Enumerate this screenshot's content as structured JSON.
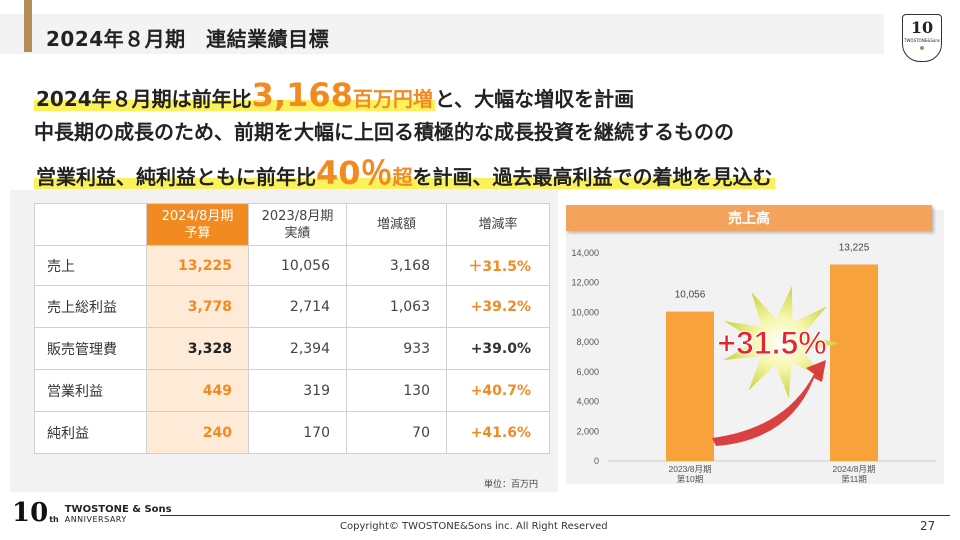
{
  "header": {
    "title": "2024年８月期　連結業績目標"
  },
  "headline": {
    "line1_a": "2024年８月期は前年比",
    "line1_big": "3,168",
    "line1_b": "百万円増",
    "line1_c": "と、大幅な増収を計画",
    "line2": "中長期の成長のため、前期を大幅に上回る積極的な成長投資を継続するものの",
    "line3_a": "営業利益、純利益ともに前年比",
    "line3_big": "40％",
    "line3_b": "超",
    "line3_c": "を計画、過去最高利益での着地を見込む"
  },
  "table": {
    "headers": [
      "2024/8月期\n予算",
      "2023/8月期\n実績",
      "増減額",
      "増減率"
    ],
    "header_budget_l1": "2024/8月期",
    "header_budget_l2": "予算",
    "header_actual_l1": "2023/8月期",
    "header_actual_l2": "実績",
    "header_diff": "増減額",
    "header_rate": "増減率",
    "rows": [
      {
        "item": "売上",
        "budget": "13,225",
        "actual": "10,056",
        "diff": "3,168",
        "rate": "＋31.5%"
      },
      {
        "item": "売上総利益",
        "budget": "3,778",
        "actual": "2,714",
        "diff": "1,063",
        "rate": "+39.2%"
      },
      {
        "item": "販売管理費",
        "budget": "3,328",
        "actual": "2,394",
        "diff": "933",
        "rate": "+39.0%"
      },
      {
        "item": "営業利益",
        "budget": "449",
        "actual": "319",
        "diff": "130",
        "rate": "+40.7%"
      },
      {
        "item": "純利益",
        "budget": "240",
        "actual": "170",
        "diff": "70",
        "rate": "+41.6%"
      }
    ],
    "unit": "単位：百万円"
  },
  "chart_data": {
    "type": "bar",
    "title": "売上高",
    "categories": [
      "2023/8月期\n第10期",
      "2024/8月期\n第11期"
    ],
    "category_lines": [
      [
        "2023/8月期",
        "第10期"
      ],
      [
        "2024/8月期",
        "第11期"
      ]
    ],
    "values": [
      10056,
      13225
    ],
    "value_labels": [
      "10,056",
      "13,225"
    ],
    "ylim": [
      0,
      14000
    ],
    "yticks": [
      0,
      2000,
      4000,
      6000,
      8000,
      10000,
      12000,
      14000
    ],
    "ytick_labels": [
      "0",
      "2,000",
      "4,000",
      "6,000",
      "8,000",
      "10,000",
      "12,000",
      "14,000"
    ],
    "annotation": "+31.5%",
    "bar_color": "#f7a23a",
    "annotation_color": "#e3262e",
    "grid": false
  },
  "footer": {
    "logo_num": "10",
    "logo_th": "th",
    "logo_brand": "TWOSTONE & Sons",
    "logo_anniv": "ANNIVERSARY",
    "copyright": "Copyright© TWOSTONE&Sons inc. All Right Reserved",
    "page": "27"
  },
  "top_logo": {
    "num": "10",
    "text": "TWOSTONE&Sons"
  },
  "colors": {
    "accent": "#f28a22",
    "gold": "#b38f55",
    "highlight": "#fbf25b"
  }
}
